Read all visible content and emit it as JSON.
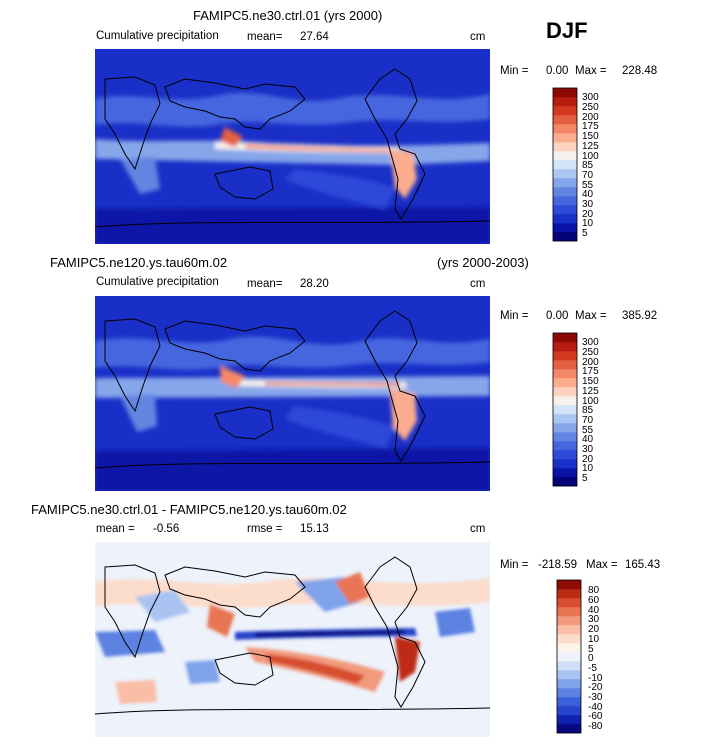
{
  "season": "DJF",
  "colors": {
    "abs_scale": [
      "#030377",
      "#0b12a6",
      "#1a2fc7",
      "#2d4ad9",
      "#4466df",
      "#6385e2",
      "#86a6ea",
      "#abc6f2",
      "#d2e3fa",
      "#f6f1ec",
      "#fcd3bf",
      "#fbad8e",
      "#f48768",
      "#e55f43",
      "#d2391f",
      "#b61c10",
      "#8b0a06"
    ],
    "diff_scale": [
      "#07077f",
      "#1020af",
      "#2644cc",
      "#3b61da",
      "#5b82e2",
      "#7fa2ea",
      "#a8c3f1",
      "#cfdff8",
      "#edf2fb",
      "#fdf3ea",
      "#fcdccb",
      "#f9bea7",
      "#f29a7d",
      "#e87453",
      "#d74d2f",
      "#bd2a15",
      "#8e0b05"
    ]
  },
  "chart_data": [
    {
      "type": "heatmap",
      "title": "FAMIPC5.ne30.ctrl.01 (yrs 2000)",
      "subtitle": "Cumulative precipitation",
      "mean_label": "mean=",
      "mean_value": "27.64",
      "units": "cm",
      "min_label": "Min =",
      "min_value": "0.00",
      "max_label": "Max =",
      "max_value": "228.48",
      "colorbar_levels": [
        "5",
        "10",
        "20",
        "30",
        "40",
        "55",
        "70",
        "85",
        "100",
        "125",
        "150",
        "175",
        "200",
        "250",
        "300"
      ]
    },
    {
      "type": "heatmap",
      "title": "FAMIPC5.ne120.ys.tau60m.02",
      "title_right": "(yrs 2000-2003)",
      "subtitle": "Cumulative precipitation",
      "mean_label": "mean=",
      "mean_value": "28.20",
      "units": "cm",
      "min_label": "Min =",
      "min_value": "0.00",
      "max_label": "Max =",
      "max_value": "385.92",
      "colorbar_levels": [
        "5",
        "10",
        "20",
        "30",
        "40",
        "55",
        "70",
        "85",
        "100",
        "125",
        "150",
        "175",
        "200",
        "250",
        "300"
      ]
    },
    {
      "type": "heatmap",
      "title": "FAMIPC5.ne30.ctrl.01 - FAMIPC5.ne120.ys.tau60m.02",
      "mean_label": "mean =",
      "mean_value": "-0.56",
      "rmse_label": "rmse =",
      "rmse_value": "15.13",
      "units": "cm",
      "min_label": "Min =",
      "min_value": "-218.59",
      "max_label": "Max =",
      "max_value": "165.43",
      "colorbar_levels": [
        "-80",
        "-60",
        "-40",
        "-30",
        "-20",
        "-10",
        "-5",
        "0",
        "5",
        "10",
        "20",
        "30",
        "40",
        "60",
        "80"
      ]
    }
  ]
}
